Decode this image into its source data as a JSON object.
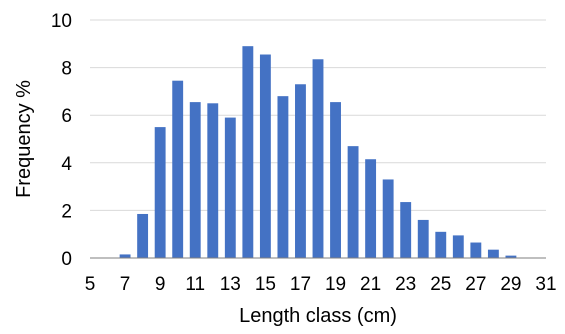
{
  "chart_data": {
    "type": "bar",
    "title": "",
    "xlabel": "Length class (cm)",
    "ylabel": "Frequency %",
    "ylim": [
      0,
      10
    ],
    "yticks": [
      "0",
      "2",
      "4",
      "6",
      "8",
      "10"
    ],
    "xlim": [
      5,
      31
    ],
    "xticks": [
      "5",
      "7",
      "9",
      "11",
      "13",
      "15",
      "17",
      "19",
      "21",
      "23",
      "25",
      "27",
      "29",
      "31"
    ],
    "grid": true,
    "bar_color": "#4472C4",
    "grid_color": "#D9D9D9",
    "axis_color": "#7F7F7F",
    "categories": [
      6,
      7,
      8,
      9,
      10,
      11,
      12,
      13,
      14,
      15,
      16,
      17,
      18,
      19,
      20,
      21,
      22,
      23,
      24,
      25,
      26,
      27,
      28,
      29,
      30
    ],
    "values": [
      0,
      0.15,
      1.85,
      5.5,
      7.45,
      6.55,
      6.5,
      5.9,
      8.9,
      8.55,
      6.8,
      7.3,
      8.35,
      6.55,
      4.7,
      4.15,
      3.3,
      2.35,
      1.6,
      1.1,
      0.95,
      0.65,
      0.35,
      0.1,
      0
    ]
  }
}
